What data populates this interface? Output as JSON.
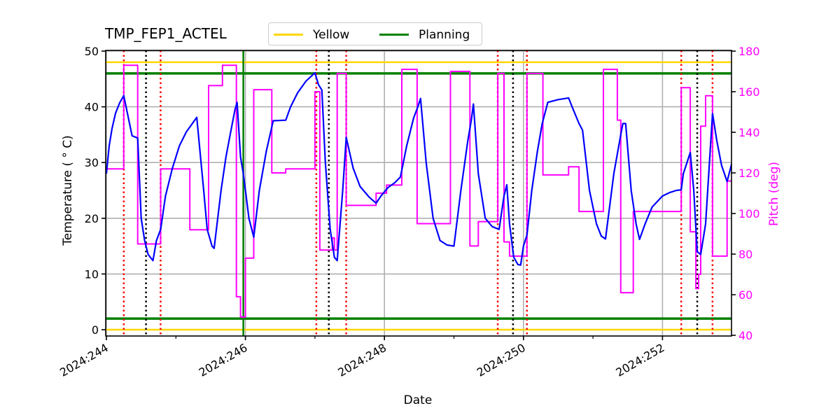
{
  "chart_data": {
    "type": "line",
    "title": "TMP_FEP1_ACTEL",
    "xlabel": "Date",
    "ylabel": "Temperature ($^\\circ$C)",
    "ylabel_display": "Temperature ( ° C)",
    "y2label": "Pitch (deg)",
    "xlim": [
      244.0,
      253.0
    ],
    "ylim": [
      -1,
      50
    ],
    "y2lim": [
      40,
      180
    ],
    "grid": true,
    "legend_position": "top-center, above axes",
    "xticks": [
      {
        "value": 244,
        "label": "2024:244"
      },
      {
        "value": 246,
        "label": "2024:246"
      },
      {
        "value": 248,
        "label": "2024:248"
      },
      {
        "value": 250,
        "label": "2024:250"
      },
      {
        "value": 252,
        "label": "2024:252"
      }
    ],
    "xminor_ticks": [
      245,
      247,
      249,
      251
    ],
    "yticks": [
      0,
      10,
      20,
      30,
      40,
      50
    ],
    "y2ticks": [
      40,
      60,
      80,
      100,
      120,
      140,
      160,
      180
    ],
    "legend": [
      {
        "label": "Yellow",
        "color": "#FFD700"
      },
      {
        "label": "Planning",
        "color": "#008000"
      }
    ],
    "limits": {
      "yellow": {
        "low": 0,
        "high": 48,
        "color": "#FFD700"
      },
      "planning": {
        "low": 2,
        "high": 46,
        "color": "#008000"
      }
    },
    "now_marker": {
      "x": 245.97,
      "color": "#008000"
    },
    "event_lines": {
      "red": [
        244.25,
        244.78,
        247.02,
        247.45,
        249.63,
        250.05,
        252.27,
        252.72
      ],
      "black": [
        244.57,
        247.2,
        249.85,
        252.5
      ]
    },
    "series": [
      {
        "name": "TMP_FEP1_ACTEL",
        "axis": "left",
        "color": "#0000FF",
        "points": [
          [
            244.0,
            28.0
          ],
          [
            244.04,
            33.0
          ],
          [
            244.08,
            36.0
          ],
          [
            244.13,
            38.8
          ],
          [
            244.19,
            40.7
          ],
          [
            244.25,
            42.0
          ],
          [
            244.37,
            34.8
          ],
          [
            244.45,
            34.4
          ],
          [
            244.5,
            20.0
          ],
          [
            244.55,
            16.0
          ],
          [
            244.6,
            13.5
          ],
          [
            244.67,
            12.4
          ],
          [
            244.72,
            16.0
          ],
          [
            244.78,
            18.0
          ],
          [
            244.85,
            24.0
          ],
          [
            244.95,
            29.0
          ],
          [
            245.05,
            33.0
          ],
          [
            245.15,
            35.5
          ],
          [
            245.3,
            38.1
          ],
          [
            245.4,
            25.0
          ],
          [
            245.45,
            18.0
          ],
          [
            245.52,
            15.0
          ],
          [
            245.55,
            14.6
          ],
          [
            245.65,
            25.0
          ],
          [
            245.72,
            31.0
          ],
          [
            245.78,
            35.0
          ],
          [
            245.85,
            39.5
          ],
          [
            245.88,
            40.8
          ],
          [
            245.93,
            31.0
          ],
          [
            245.97,
            28.0
          ],
          [
            246.05,
            20.0
          ],
          [
            246.12,
            16.6
          ],
          [
            246.2,
            25.0
          ],
          [
            246.3,
            32.0
          ],
          [
            246.4,
            37.5
          ],
          [
            246.58,
            37.6
          ],
          [
            246.65,
            40.0
          ],
          [
            246.75,
            42.5
          ],
          [
            246.87,
            44.6
          ],
          [
            247.0,
            46.1
          ],
          [
            247.05,
            44.0
          ],
          [
            247.1,
            43.0
          ],
          [
            247.15,
            30.0
          ],
          [
            247.22,
            18.0
          ],
          [
            247.28,
            13.0
          ],
          [
            247.32,
            12.4
          ],
          [
            247.4,
            25.0
          ],
          [
            247.45,
            34.5
          ],
          [
            247.55,
            29.0
          ],
          [
            247.65,
            25.7
          ],
          [
            247.78,
            23.8
          ],
          [
            247.88,
            22.7
          ],
          [
            247.95,
            24.0
          ],
          [
            248.05,
            25.5
          ],
          [
            248.15,
            26.4
          ],
          [
            248.23,
            27.4
          ],
          [
            248.32,
            33.0
          ],
          [
            248.42,
            38.0
          ],
          [
            248.48,
            40.0
          ],
          [
            248.52,
            41.5
          ],
          [
            248.6,
            30.0
          ],
          [
            248.7,
            20.0
          ],
          [
            248.8,
            16.0
          ],
          [
            248.9,
            15.2
          ],
          [
            249.0,
            15.0
          ],
          [
            249.1,
            25.0
          ],
          [
            249.2,
            34.0
          ],
          [
            249.25,
            37.6
          ],
          [
            249.28,
            40.5
          ],
          [
            249.35,
            28.0
          ],
          [
            249.45,
            20.0
          ],
          [
            249.55,
            18.5
          ],
          [
            249.65,
            18.0
          ],
          [
            249.72,
            24.0
          ],
          [
            249.76,
            26.0
          ],
          [
            249.8,
            19.0
          ],
          [
            249.86,
            13.0
          ],
          [
            249.92,
            11.7
          ],
          [
            249.96,
            11.6
          ],
          [
            250.0,
            15.0
          ],
          [
            250.05,
            17.0
          ],
          [
            250.12,
            25.0
          ],
          [
            250.2,
            32.0
          ],
          [
            250.27,
            37.0
          ],
          [
            250.35,
            40.8
          ],
          [
            250.5,
            41.3
          ],
          [
            250.65,
            41.6
          ],
          [
            250.7,
            40.0
          ],
          [
            250.8,
            37.0
          ],
          [
            250.85,
            35.8
          ],
          [
            250.95,
            25.0
          ],
          [
            251.05,
            19.0
          ],
          [
            251.12,
            16.8
          ],
          [
            251.18,
            16.3
          ],
          [
            251.3,
            28.0
          ],
          [
            251.4,
            35.0
          ],
          [
            251.43,
            37.0
          ],
          [
            251.47,
            37.0
          ],
          [
            251.55,
            25.0
          ],
          [
            251.62,
            19.0
          ],
          [
            251.67,
            16.2
          ],
          [
            251.75,
            19.0
          ],
          [
            251.85,
            22.0
          ],
          [
            252.0,
            24.0
          ],
          [
            252.1,
            24.6
          ],
          [
            252.2,
            25.0
          ],
          [
            252.27,
            25.1
          ],
          [
            252.3,
            28.0
          ],
          [
            252.4,
            31.8
          ],
          [
            252.45,
            25.0
          ],
          [
            252.5,
            14.0
          ],
          [
            252.55,
            13.5
          ],
          [
            252.62,
            19.0
          ],
          [
            252.72,
            38.8
          ],
          [
            252.78,
            34.0
          ],
          [
            252.85,
            29.5
          ],
          [
            252.93,
            26.6
          ],
          [
            253.0,
            30.0
          ]
        ]
      },
      {
        "name": "Pitch",
        "axis": "right",
        "color": "#FF00FF",
        "step": true,
        "points": [
          [
            244.0,
            122
          ],
          [
            244.25,
            122
          ],
          [
            244.25,
            173
          ],
          [
            244.45,
            173
          ],
          [
            244.45,
            85
          ],
          [
            244.78,
            85
          ],
          [
            244.78,
            122
          ],
          [
            245.2,
            122
          ],
          [
            245.2,
            92
          ],
          [
            245.47,
            92
          ],
          [
            245.47,
            163
          ],
          [
            245.67,
            163
          ],
          [
            245.67,
            173
          ],
          [
            245.87,
            173
          ],
          [
            245.87,
            59
          ],
          [
            245.93,
            59
          ],
          [
            245.93,
            49
          ],
          [
            246.0,
            49
          ],
          [
            246.0,
            78
          ],
          [
            246.12,
            78
          ],
          [
            246.12,
            161
          ],
          [
            246.38,
            161
          ],
          [
            246.38,
            120
          ],
          [
            246.58,
            120
          ],
          [
            246.58,
            122
          ],
          [
            247.0,
            122
          ],
          [
            247.0,
            160
          ],
          [
            247.07,
            160
          ],
          [
            247.07,
            82
          ],
          [
            247.25,
            82
          ],
          [
            247.25,
            88
          ],
          [
            247.28,
            88
          ],
          [
            247.28,
            82
          ],
          [
            247.32,
            82
          ],
          [
            247.32,
            169
          ],
          [
            247.45,
            169
          ],
          [
            247.45,
            104
          ],
          [
            247.88,
            104
          ],
          [
            247.88,
            110
          ],
          [
            248.03,
            110
          ],
          [
            248.03,
            114
          ],
          [
            248.25,
            114
          ],
          [
            248.25,
            171
          ],
          [
            248.47,
            171
          ],
          [
            248.47,
            95
          ],
          [
            248.95,
            95
          ],
          [
            248.95,
            170
          ],
          [
            249.23,
            170
          ],
          [
            249.23,
            84
          ],
          [
            249.35,
            84
          ],
          [
            249.35,
            96
          ],
          [
            249.63,
            96
          ],
          [
            249.63,
            169
          ],
          [
            249.72,
            169
          ],
          [
            249.72,
            86
          ],
          [
            249.8,
            86
          ],
          [
            249.8,
            79
          ],
          [
            250.05,
            79
          ],
          [
            250.05,
            169
          ],
          [
            250.28,
            169
          ],
          [
            250.28,
            119
          ],
          [
            250.65,
            119
          ],
          [
            250.65,
            123
          ],
          [
            250.8,
            123
          ],
          [
            250.8,
            101
          ],
          [
            251.15,
            101
          ],
          [
            251.15,
            171
          ],
          [
            251.35,
            171
          ],
          [
            251.35,
            146
          ],
          [
            251.4,
            146
          ],
          [
            251.4,
            61
          ],
          [
            251.58,
            61
          ],
          [
            251.58,
            101
          ],
          [
            252.27,
            101
          ],
          [
            252.27,
            162
          ],
          [
            252.4,
            162
          ],
          [
            252.4,
            91
          ],
          [
            252.48,
            91
          ],
          [
            252.48,
            63
          ],
          [
            252.52,
            63
          ],
          [
            252.52,
            70
          ],
          [
            252.55,
            70
          ],
          [
            252.55,
            143
          ],
          [
            252.62,
            143
          ],
          [
            252.62,
            158
          ],
          [
            252.72,
            158
          ],
          [
            252.72,
            79
          ],
          [
            252.93,
            79
          ],
          [
            252.93,
            116
          ],
          [
            253.0,
            116
          ]
        ]
      }
    ]
  }
}
